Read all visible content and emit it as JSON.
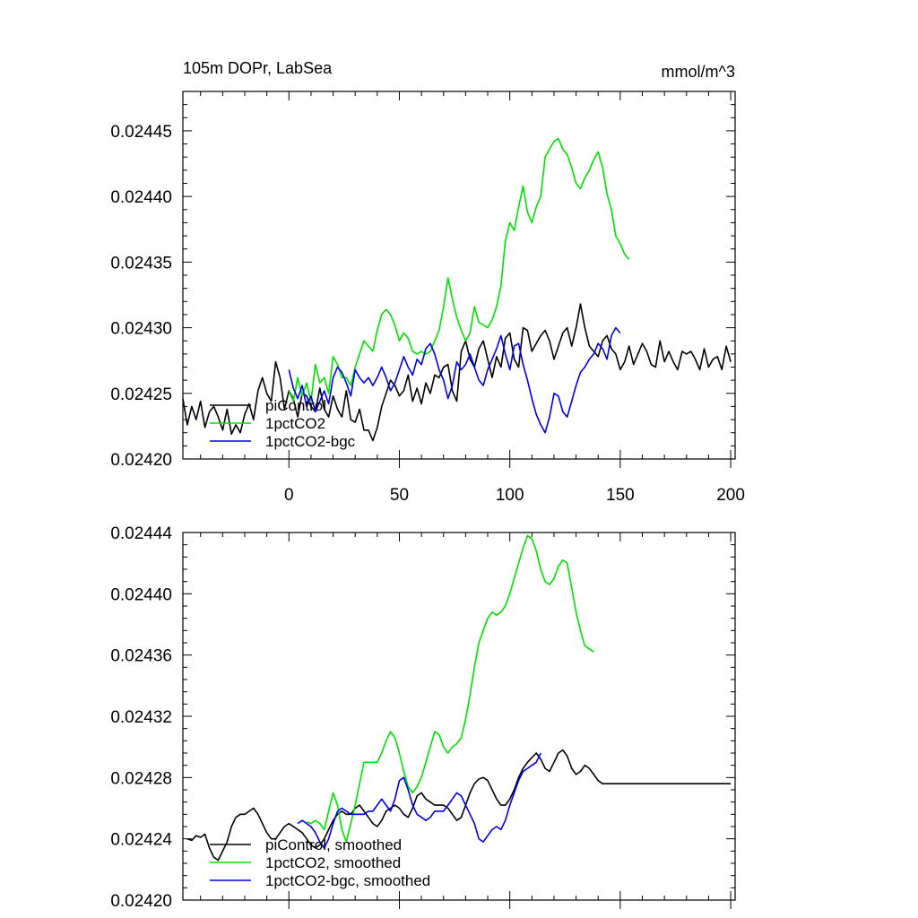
{
  "colors": {
    "piControl": "#000000",
    "pct": "#00e000",
    "bgc": "#0000e6"
  },
  "chart_data": [
    {
      "type": "line",
      "title": "105m DOPr, LabSea",
      "units": "mmol/m^3",
      "xlim": [
        -48,
        202
      ],
      "ylim": [
        0.0242,
        0.02448
      ],
      "xticks": [
        0,
        50,
        100,
        150,
        200
      ],
      "xtick_labels": [
        "0",
        "50",
        "100",
        "150",
        "200"
      ],
      "yticks": [
        0.0242,
        0.02425,
        0.0243,
        0.02435,
        0.0244,
        0.02445
      ],
      "ytick_labels": [
        "0.02420",
        "0.02425",
        "0.02430",
        "0.02435",
        "0.02440",
        "0.02445"
      ],
      "legend": [
        "piControl",
        "1pctCO2",
        "1pctCO2-bgc"
      ],
      "series": [
        {
          "name": "piControl",
          "color_key": "piControl",
          "x_start": -48,
          "x_step": 2,
          "values": [
            0.024246,
            0.024226,
            0.02424,
            0.02423,
            0.024244,
            0.024224,
            0.024236,
            0.02424,
            0.024232,
            0.024222,
            0.024238,
            0.024219,
            0.024226,
            0.02422,
            0.024234,
            0.024242,
            0.02423,
            0.024252,
            0.024262,
            0.02425,
            0.024244,
            0.024274,
            0.024262,
            0.024238,
            0.024252,
            0.024246,
            0.024232,
            0.02425,
            0.024248,
            0.02424,
            0.024236,
            0.024254,
            0.024238,
            0.024232,
            0.024248,
            0.024238,
            0.024232,
            0.024252,
            0.02423,
            0.024228,
            0.024238,
            0.024222,
            0.024222,
            0.024214,
            0.024224,
            0.02424,
            0.02425,
            0.02426,
            0.024256,
            0.024248,
            0.024252,
            0.024264,
            0.024244,
            0.024254,
            0.024242,
            0.024258,
            0.02425,
            0.024264,
            0.024262,
            0.02427,
            0.024272,
            0.024252,
            0.024244,
            0.024282,
            0.02429,
            0.024276,
            0.02427,
            0.024284,
            0.02429,
            0.024276,
            0.024262,
            0.024278,
            0.02427,
            0.024292,
            0.024296,
            0.024276,
            0.02427,
            0.0243,
            0.024298,
            0.024282,
            0.024288,
            0.024294,
            0.024298,
            0.02429,
            0.024276,
            0.024286,
            0.024296,
            0.0243,
            0.024286,
            0.0243,
            0.024318,
            0.0243,
            0.024286,
            0.024282,
            0.024278,
            0.02429,
            0.024294,
            0.024284,
            0.02428,
            0.024268,
            0.024274,
            0.024286,
            0.024272,
            0.02428,
            0.024288,
            0.024282,
            0.024272,
            0.02427,
            0.02429,
            0.024274,
            0.024282,
            0.024274,
            0.024268,
            0.024282,
            0.02428,
            0.024282,
            0.024276,
            0.024268,
            0.024284,
            0.02427,
            0.024276,
            0.024278,
            0.024268,
            0.024286,
            0.024274
          ]
        },
        {
          "name": "1pctCO2",
          "color_key": "pct",
          "x_start": 0,
          "x_step": 2,
          "values": [
            0.024252,
            0.024244,
            0.024262,
            0.024248,
            0.024258,
            0.024244,
            0.024272,
            0.024258,
            0.024262,
            0.02425,
            0.024278,
            0.024272,
            0.024262,
            0.024262,
            0.024256,
            0.02427,
            0.02428,
            0.02429,
            0.024286,
            0.024282,
            0.024298,
            0.02431,
            0.024314,
            0.02431,
            0.024302,
            0.02429,
            0.024296,
            0.024292,
            0.024282,
            0.02428,
            0.024282,
            0.02428,
            0.024282,
            0.02429,
            0.024298,
            0.024316,
            0.024338,
            0.024322,
            0.024308,
            0.024298,
            0.02429,
            0.024296,
            0.024316,
            0.024304,
            0.024302,
            0.0243,
            0.024306,
            0.024316,
            0.024332,
            0.024366,
            0.02438,
            0.024374,
            0.024392,
            0.024408,
            0.024388,
            0.02438,
            0.024392,
            0.0244,
            0.02443,
            0.024436,
            0.024442,
            0.024444,
            0.024436,
            0.024432,
            0.024422,
            0.02441,
            0.024406,
            0.024414,
            0.02442,
            0.024428,
            0.024434,
            0.024422,
            0.024402,
            0.02439,
            0.02437,
            0.024364,
            0.024356,
            0.024352
          ]
        },
        {
          "name": "1pctCO2-bgc",
          "color_key": "bgc",
          "x_start": 0,
          "x_step": 2,
          "values": [
            0.024268,
            0.024254,
            0.024246,
            0.024256,
            0.02424,
            0.024248,
            0.024236,
            0.024244,
            0.024252,
            0.024242,
            0.024262,
            0.02427,
            0.024266,
            0.024258,
            0.024248,
            0.024268,
            0.024262,
            0.024258,
            0.024262,
            0.024256,
            0.024262,
            0.02427,
            0.024262,
            0.024252,
            0.024258,
            0.024268,
            0.024278,
            0.02427,
            0.024264,
            0.024276,
            0.024272,
            0.024284,
            0.024288,
            0.02428,
            0.024268,
            0.02426,
            0.024246,
            0.024256,
            0.024274,
            0.024268,
            0.024272,
            0.02428,
            0.02427,
            0.02426,
            0.024256,
            0.024268,
            0.024276,
            0.024284,
            0.024294,
            0.02428,
            0.024268,
            0.024286,
            0.024288,
            0.024272,
            0.02426,
            0.024246,
            0.024234,
            0.024226,
            0.02422,
            0.024232,
            0.02425,
            0.024248,
            0.024236,
            0.024232,
            0.024244,
            0.024256,
            0.024266,
            0.02427,
            0.024276,
            0.02428,
            0.024288,
            0.024284,
            0.024276,
            0.024294,
            0.0243,
            0.024296
          ]
        }
      ]
    },
    {
      "type": "line",
      "xlim": [
        -48,
        202
      ],
      "ylim": [
        0.0242,
        0.02444
      ],
      "xticks": [
        0,
        50,
        100,
        150,
        200
      ],
      "yticks": [
        0.0242,
        0.02424,
        0.02428,
        0.02432,
        0.02436,
        0.0244,
        0.02444
      ],
      "ytick_labels": [
        "0.02420",
        "0.02424",
        "0.02428",
        "0.02432",
        "0.02436",
        "0.02440",
        "0.02444"
      ],
      "legend": [
        "piControl, smoothed",
        "1pctCO2, smoothed",
        "1pctCO2-bgc, smoothed"
      ],
      "series": [
        {
          "name": "piControl, smoothed",
          "color_key": "piControl",
          "x_start": -46,
          "x_step": 2,
          "values": [
            0.02424,
            0.024239,
            0.024242,
            0.024241,
            0.024243,
            0.024234,
            0.024228,
            0.024226,
            0.024232,
            0.024238,
            0.024248,
            0.024254,
            0.024256,
            0.024256,
            0.024258,
            0.02426,
            0.024256,
            0.02425,
            0.024244,
            0.02424,
            0.02424,
            0.024244,
            0.024248,
            0.02425,
            0.024248,
            0.024246,
            0.024244,
            0.02424,
            0.024236,
            0.024234,
            0.024236,
            0.02424,
            0.024246,
            0.024252,
            0.024256,
            0.024258,
            0.024256,
            0.024256,
            0.02426,
            0.024262,
            0.024258,
            0.024254,
            0.02425,
            0.024248,
            0.024252,
            0.024258,
            0.02426,
            0.024262,
            0.02426,
            0.024256,
            0.024254,
            0.02426,
            0.024268,
            0.02427,
            0.024266,
            0.024264,
            0.024262,
            0.024262,
            0.024262,
            0.02426,
            0.024256,
            0.024252,
            0.024254,
            0.024262,
            0.02427,
            0.024276,
            0.024279,
            0.02428,
            0.024278,
            0.024272,
            0.024266,
            0.024262,
            0.024262,
            0.024266,
            0.024272,
            0.02428,
            0.024286,
            0.02429,
            0.024293,
            0.024296,
            0.024292,
            0.024286,
            0.024284,
            0.02429,
            0.024296,
            0.024298,
            0.024294,
            0.024286,
            0.024282,
            0.024284,
            0.024288,
            0.024286,
            0.024282,
            0.024278,
            0.024276,
            0.024276,
            0.024276,
            0.024276,
            0.024276,
            0.024276,
            0.024276,
            0.024276,
            0.024276,
            0.024276,
            0.024276,
            0.024276,
            0.024276,
            0.024276,
            0.024276,
            0.024276,
            0.024276,
            0.024276,
            0.024276,
            0.024276,
            0.024276,
            0.024276,
            0.024276,
            0.024276,
            0.024276,
            0.024276,
            0.024276,
            0.024276,
            0.024276,
            0.024276
          ]
        },
        {
          "name": "1pctCO2, smoothed",
          "color_key": "pct",
          "x_start": 8,
          "x_step": 2,
          "values": [
            0.024251,
            0.02425,
            0.024252,
            0.02425,
            0.024246,
            0.024258,
            0.02427,
            0.024262,
            0.024246,
            0.024238,
            0.02425,
            0.024262,
            0.024276,
            0.02429,
            0.02429,
            0.02429,
            0.02429,
            0.024296,
            0.024304,
            0.02431,
            0.024306,
            0.024296,
            0.024284,
            0.024274,
            0.02427,
            0.024274,
            0.02428,
            0.02429,
            0.0243,
            0.02431,
            0.024308,
            0.0243,
            0.024296,
            0.0243,
            0.024302,
            0.024306,
            0.024318,
            0.024334,
            0.024352,
            0.024368,
            0.024376,
            0.024384,
            0.024388,
            0.024386,
            0.024388,
            0.024392,
            0.0244,
            0.02441,
            0.02442,
            0.02443,
            0.024438,
            0.024436,
            0.024428,
            0.024416,
            0.024408,
            0.024406,
            0.02441,
            0.024418,
            0.024422,
            0.02442,
            0.024404,
            0.024388,
            0.024376,
            0.024366,
            0.024364,
            0.024362
          ]
        },
        {
          "name": "1pctCO2-bgc, smoothed",
          "color_key": "bgc",
          "x_start": 4,
          "x_step": 2,
          "values": [
            0.02425,
            0.024252,
            0.02425,
            0.024248,
            0.024244,
            0.024238,
            0.024234,
            0.02424,
            0.02425,
            0.024258,
            0.02426,
            0.024258,
            0.024256,
            0.024256,
            0.024256,
            0.024256,
            0.024258,
            0.024258,
            0.024262,
            0.024266,
            0.024262,
            0.024258,
            0.024266,
            0.024278,
            0.02428,
            0.024272,
            0.024262,
            0.024256,
            0.024254,
            0.024252,
            0.024254,
            0.024258,
            0.024258,
            0.024258,
            0.024262,
            0.024266,
            0.02427,
            0.024268,
            0.024262,
            0.024256,
            0.02425,
            0.02424,
            0.024238,
            0.024242,
            0.024246,
            0.024248,
            0.024246,
            0.024252,
            0.024262,
            0.02427,
            0.024278,
            0.024284,
            0.024286,
            0.024288,
            0.02429,
            0.024296
          ]
        }
      ]
    }
  ]
}
